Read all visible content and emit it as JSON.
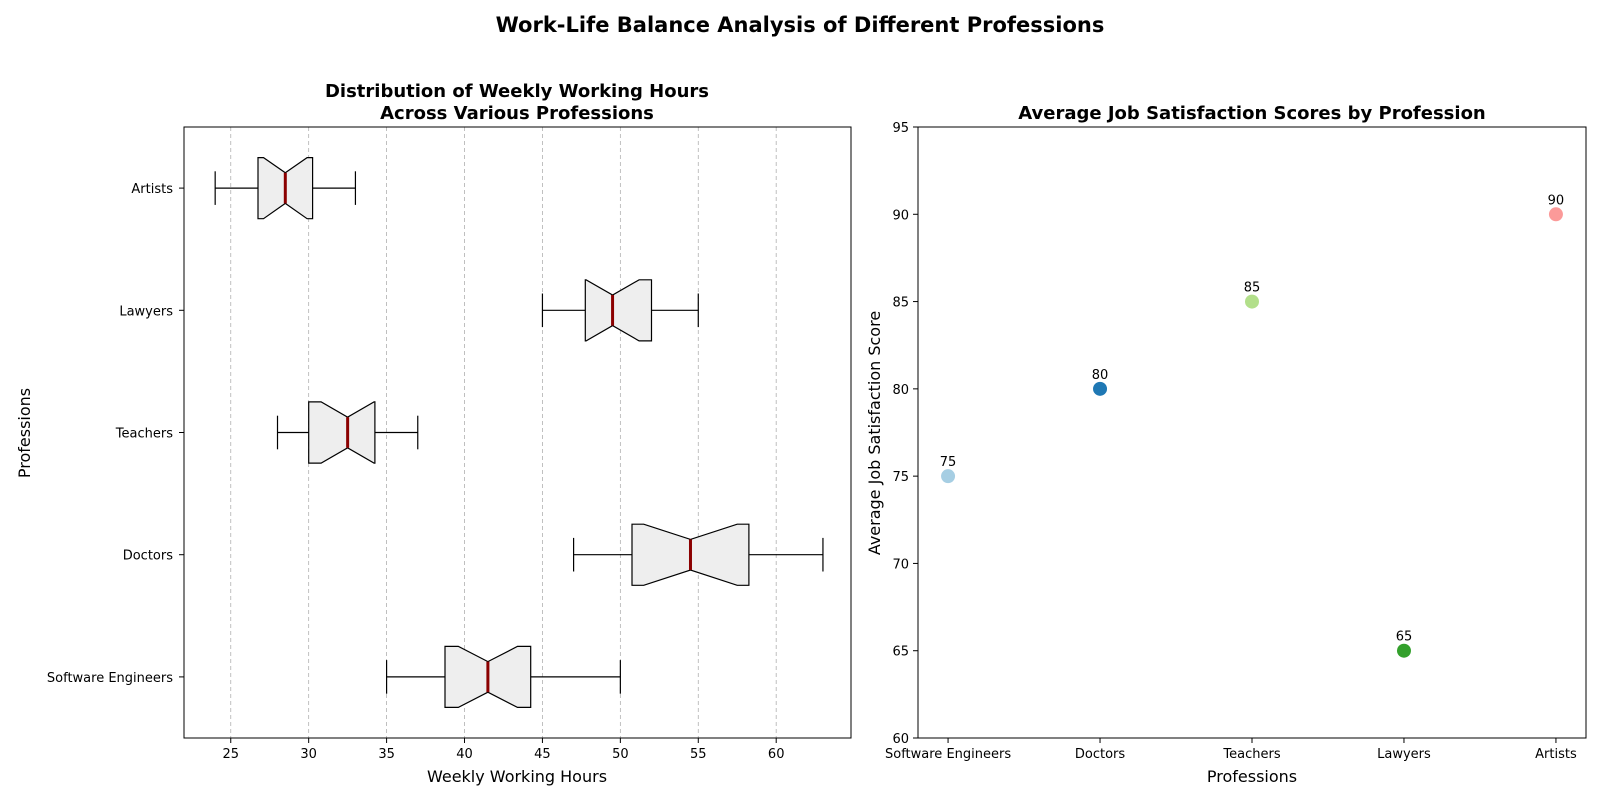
{
  "figure": {
    "title": "Work-Life Balance Analysis of Different Professions"
  },
  "chart_data": [
    {
      "type": "box",
      "orientation": "horizontal",
      "notched": true,
      "title_line1": "Distribution of Weekly Working Hours",
      "title_line2": "Across Various Professions",
      "xlabel": "Weekly Working Hours",
      "ylabel": "Professions",
      "xlim": [
        22,
        64.8
      ],
      "xticks": [
        25,
        30,
        35,
        40,
        45,
        50,
        55,
        60
      ],
      "grid": "x dashed",
      "box_color": "#eeeeee",
      "median_color": "#8b0000",
      "categories": [
        "Software Engineers",
        "Doctors",
        "Teachers",
        "Lawyers",
        "Artists"
      ],
      "boxes": [
        {
          "name": "Software Engineers",
          "whislo": 35,
          "q1": 38.75,
          "med": 41.5,
          "q3": 44.25,
          "whishi": 50,
          "notch_lo": 39.6,
          "notch_hi": 43.4
        },
        {
          "name": "Doctors",
          "whislo": 47,
          "q1": 50.75,
          "med": 54.5,
          "q3": 58.25,
          "whishi": 63,
          "notch_lo": 51.5,
          "notch_hi": 57.5
        },
        {
          "name": "Teachers",
          "whislo": 28,
          "q1": 30,
          "med": 32.5,
          "q3": 34.25,
          "whishi": 37,
          "notch_lo": 30.8,
          "notch_hi": 34.2
        },
        {
          "name": "Lawyers",
          "whislo": 45,
          "q1": 47.75,
          "med": 49.5,
          "q3": 52,
          "whishi": 55,
          "notch_lo": 47.8,
          "notch_hi": 51.2
        },
        {
          "name": "Artists",
          "whislo": 24,
          "q1": 26.75,
          "med": 28.5,
          "q3": 30.25,
          "whishi": 33,
          "notch_lo": 27.1,
          "notch_hi": 29.9
        }
      ]
    },
    {
      "type": "scatter",
      "title": "Average Job Satisfaction Scores by Profession",
      "xlabel": "Professions",
      "ylabel": "Average Job Satisfaction Score",
      "ylim": [
        60,
        95
      ],
      "yticks": [
        60,
        65,
        70,
        75,
        80,
        85,
        90,
        95
      ],
      "categories": [
        "Software Engineers",
        "Doctors",
        "Teachers",
        "Lawyers",
        "Artists"
      ],
      "values": [
        75,
        80,
        85,
        65,
        90
      ],
      "colors": [
        "#a6cee3",
        "#1f78b4",
        "#b2df8a",
        "#33a02c",
        "#fb9a99"
      ]
    }
  ]
}
